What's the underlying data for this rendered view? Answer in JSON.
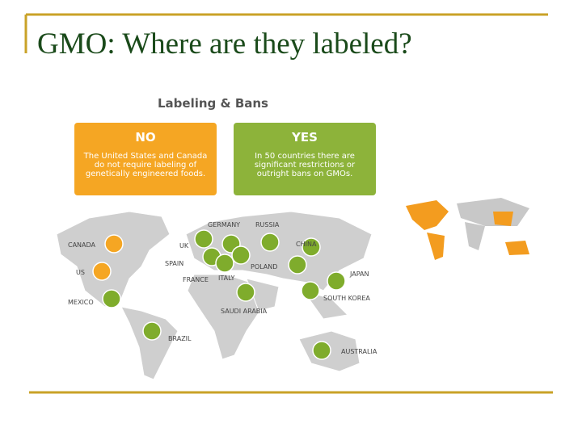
{
  "slide": {
    "title": "GMO: Where are they labeled?"
  },
  "infographic": {
    "heading": "Labeling & Bans",
    "no_box": {
      "label": "NO",
      "lines": [
        "The United States and Canada",
        "do not require labeling of",
        "genetically engineered foods."
      ]
    },
    "yes_box": {
      "label": "YES",
      "lines": [
        "In 50 countries there are",
        "significant restrictions or",
        "outright bans on GMOs."
      ]
    },
    "countries": [
      "CANADA",
      "US",
      "MEXICO",
      "BRAZIL",
      "UK",
      "GERMANY",
      "RUSSIA",
      "SPAIN",
      "FRANCE",
      "ITALY",
      "POLAND",
      "CHINA",
      "JAPAN",
      "SOUTH KOREA",
      "SAUDI ARABIA",
      "AUSTRALIA"
    ]
  }
}
